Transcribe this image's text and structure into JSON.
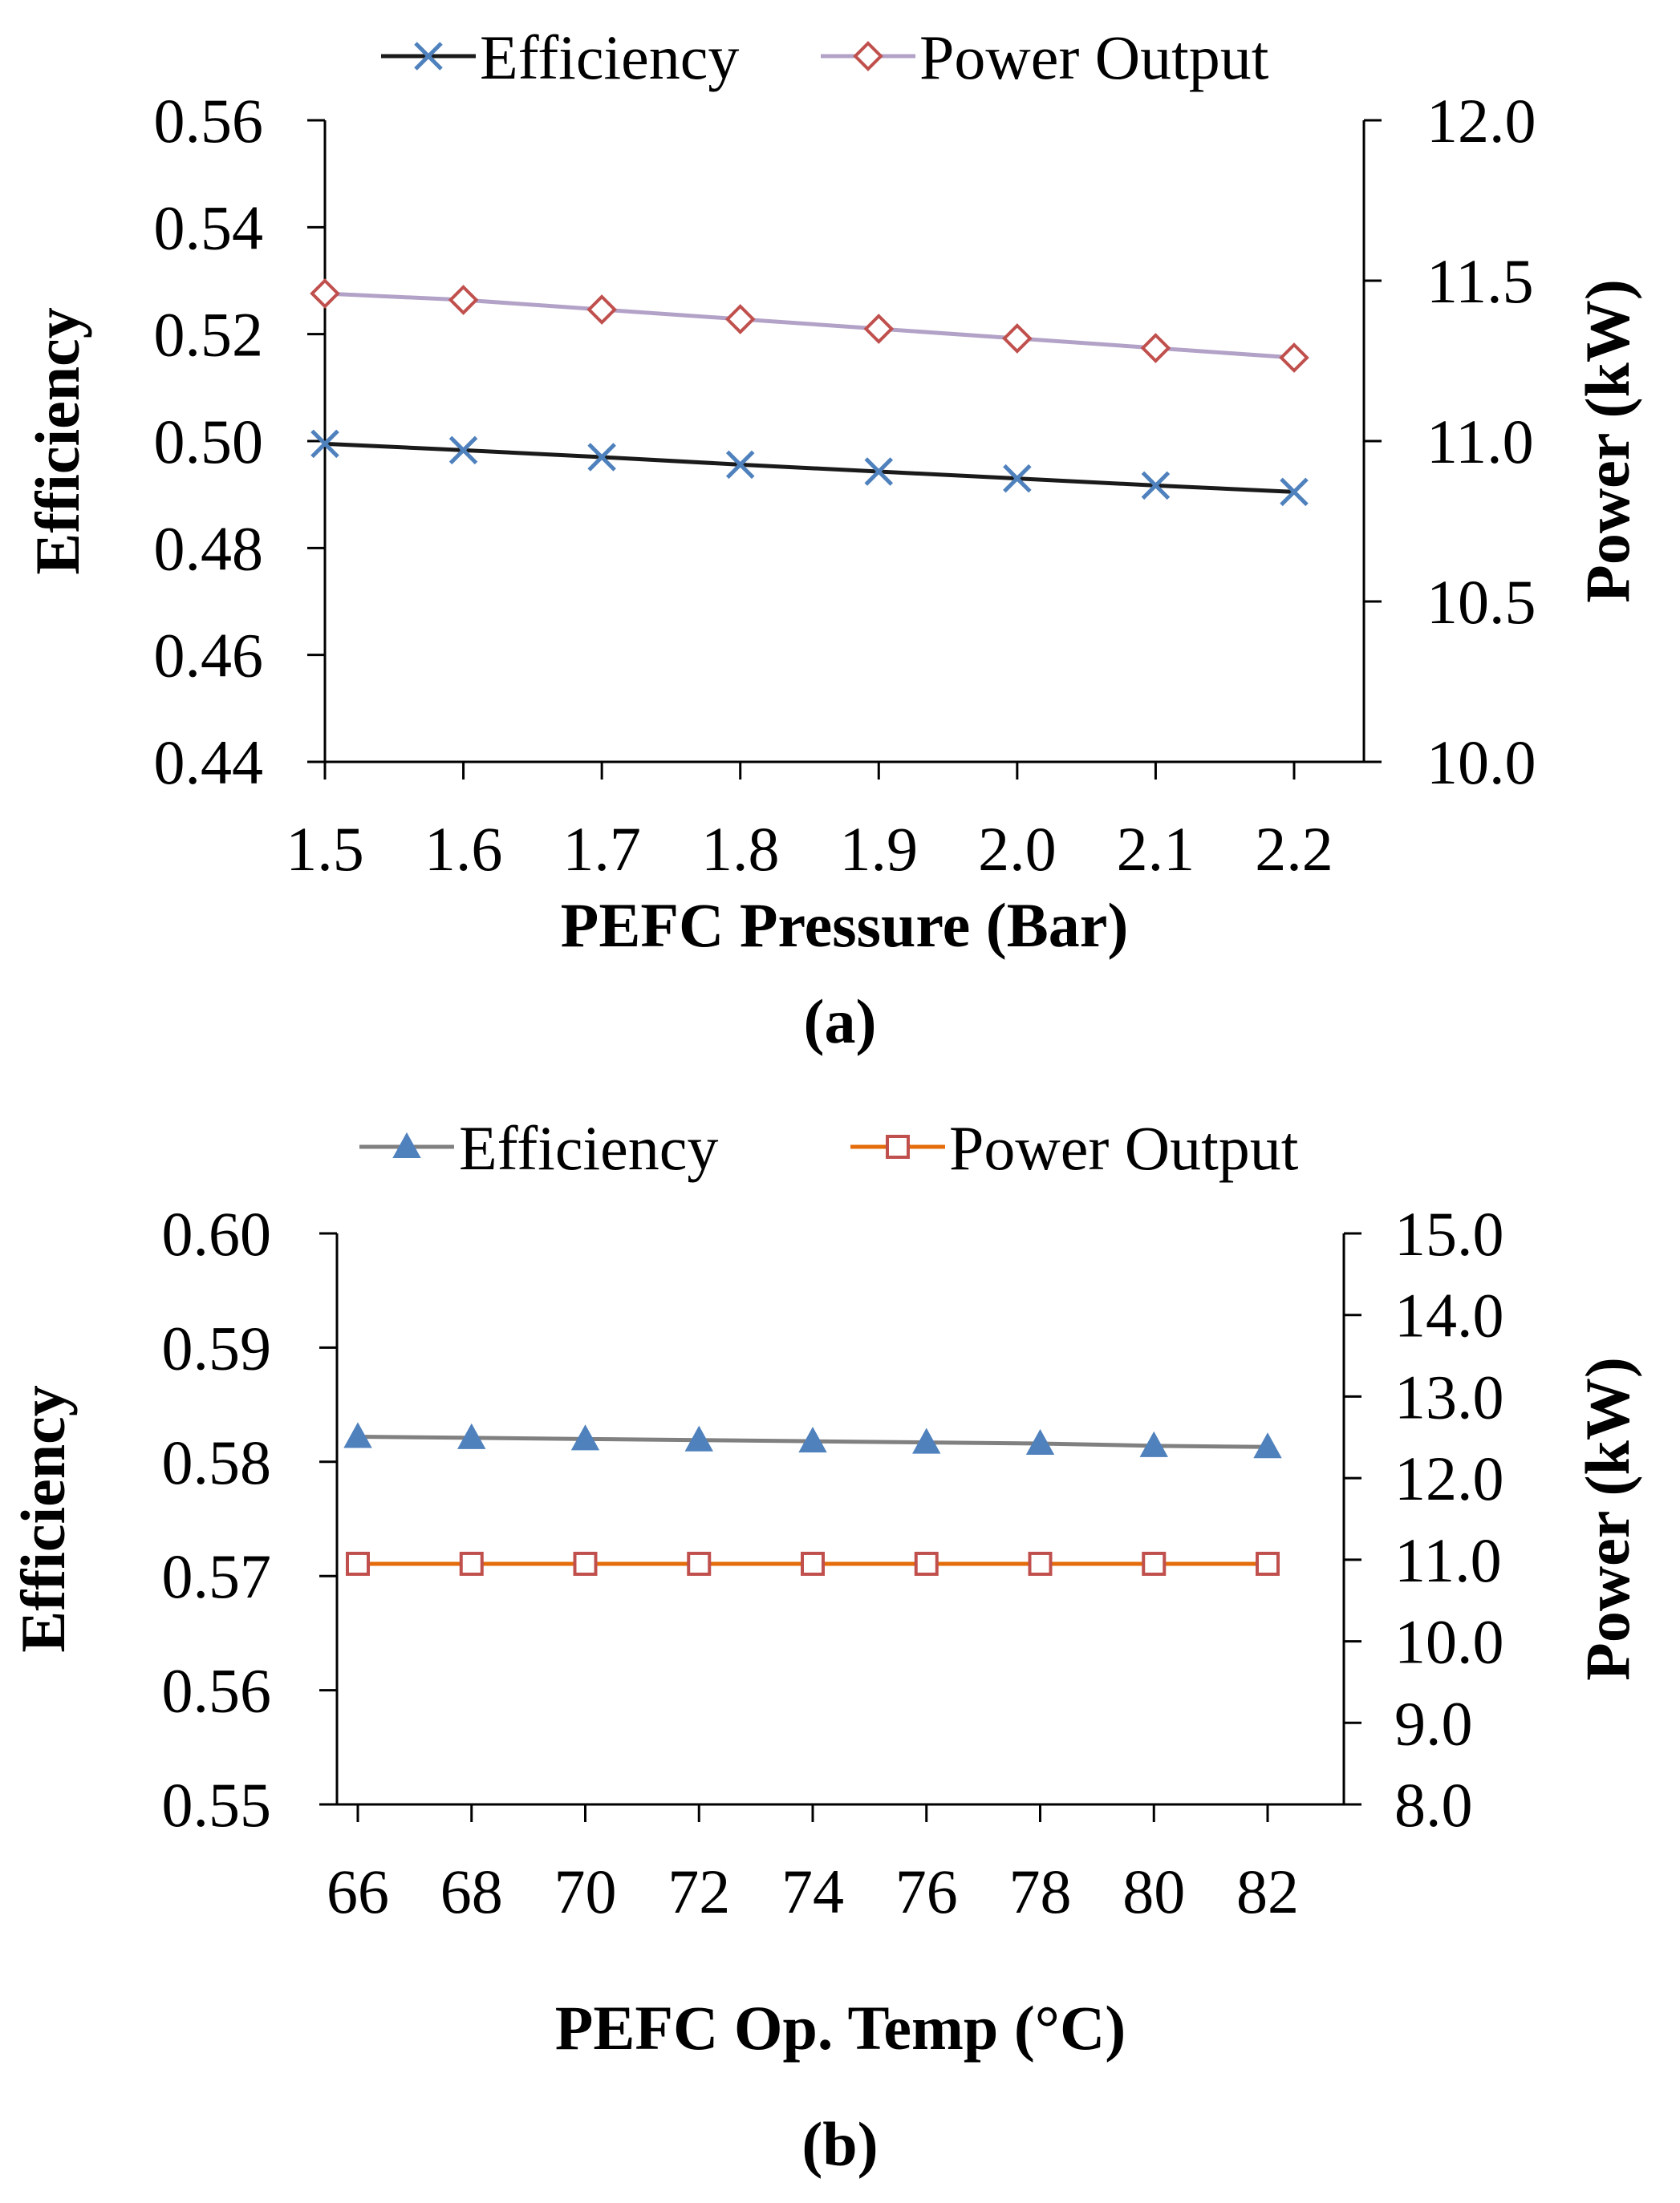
{
  "chart_data": [
    {
      "type": "line",
      "panel_label": "(a)",
      "xlabel": "PEFC Pressure (Bar)",
      "ylabel_left": "Efficiency",
      "ylabel_right": "Power (kW)",
      "x": [
        1.5,
        1.6,
        1.7,
        1.8,
        1.9,
        2.0,
        2.1,
        2.2
      ],
      "x_tick_labels": [
        "1.5",
        "1.6",
        "1.7",
        "1.8",
        "1.9",
        "2.0",
        "2.1",
        "2.2"
      ],
      "y_left_lim": [
        0.44,
        0.56
      ],
      "y_left_ticks": [
        "0.56",
        "0.54",
        "0.52",
        "0.50",
        "0.48",
        "0.46",
        "0.44"
      ],
      "y_right_lim": [
        10.0,
        12.0
      ],
      "y_right_ticks": [
        "12.0",
        "11.5",
        "11.0",
        "10.5",
        "10.0"
      ],
      "grid": false,
      "legend_position": "top",
      "series": [
        {
          "name": "Efficiency",
          "axis": "left",
          "line_color": "#1a1a1a",
          "marker": "x",
          "marker_color": "#4f81bd",
          "values": [
            0.4995,
            0.4983,
            0.497,
            0.4956,
            0.4943,
            0.493,
            0.4917,
            0.4905
          ]
        },
        {
          "name": "Power Output",
          "axis": "right",
          "line_color": "#b3a2c7",
          "marker": "diamond",
          "marker_color": "#c0504d",
          "values": [
            11.46,
            11.44,
            11.41,
            11.38,
            11.35,
            11.32,
            11.29,
            11.26
          ]
        }
      ]
    },
    {
      "type": "line",
      "panel_label": "(b)",
      "xlabel": "PEFC Op. Temp (°C)",
      "ylabel_left": "Efficiency",
      "ylabel_right": "Power (kW)",
      "x": [
        66,
        68,
        70,
        72,
        74,
        76,
        78,
        80,
        82
      ],
      "x_tick_labels": [
        "66",
        "68",
        "70",
        "72",
        "74",
        "76",
        "78",
        "80",
        "82"
      ],
      "y_left_lim": [
        0.55,
        0.6
      ],
      "y_left_ticks": [
        "0.60",
        "0.59",
        "0.58",
        "0.57",
        "0.56",
        "0.55"
      ],
      "y_right_lim": [
        8.0,
        15.0
      ],
      "y_right_ticks": [
        "15.0",
        "14.0",
        "13.0",
        "12.0",
        "11.0",
        "10.0",
        "9.0",
        "8.0"
      ],
      "grid": false,
      "legend_position": "top",
      "series": [
        {
          "name": "Efficiency",
          "axis": "left",
          "line_color": "#808080",
          "marker": "triangle",
          "marker_color": "#4f81bd",
          "values": [
            0.5822,
            0.5821,
            0.582,
            0.5819,
            0.5818,
            0.5817,
            0.5816,
            0.5814,
            0.5813
          ]
        },
        {
          "name": "Power Output",
          "axis": "right",
          "line_color": "#e46c0a",
          "marker": "square",
          "marker_color": "#c0504d",
          "values": [
            10.95,
            10.95,
            10.95,
            10.95,
            10.95,
            10.95,
            10.95,
            10.95,
            10.95
          ]
        }
      ]
    }
  ]
}
